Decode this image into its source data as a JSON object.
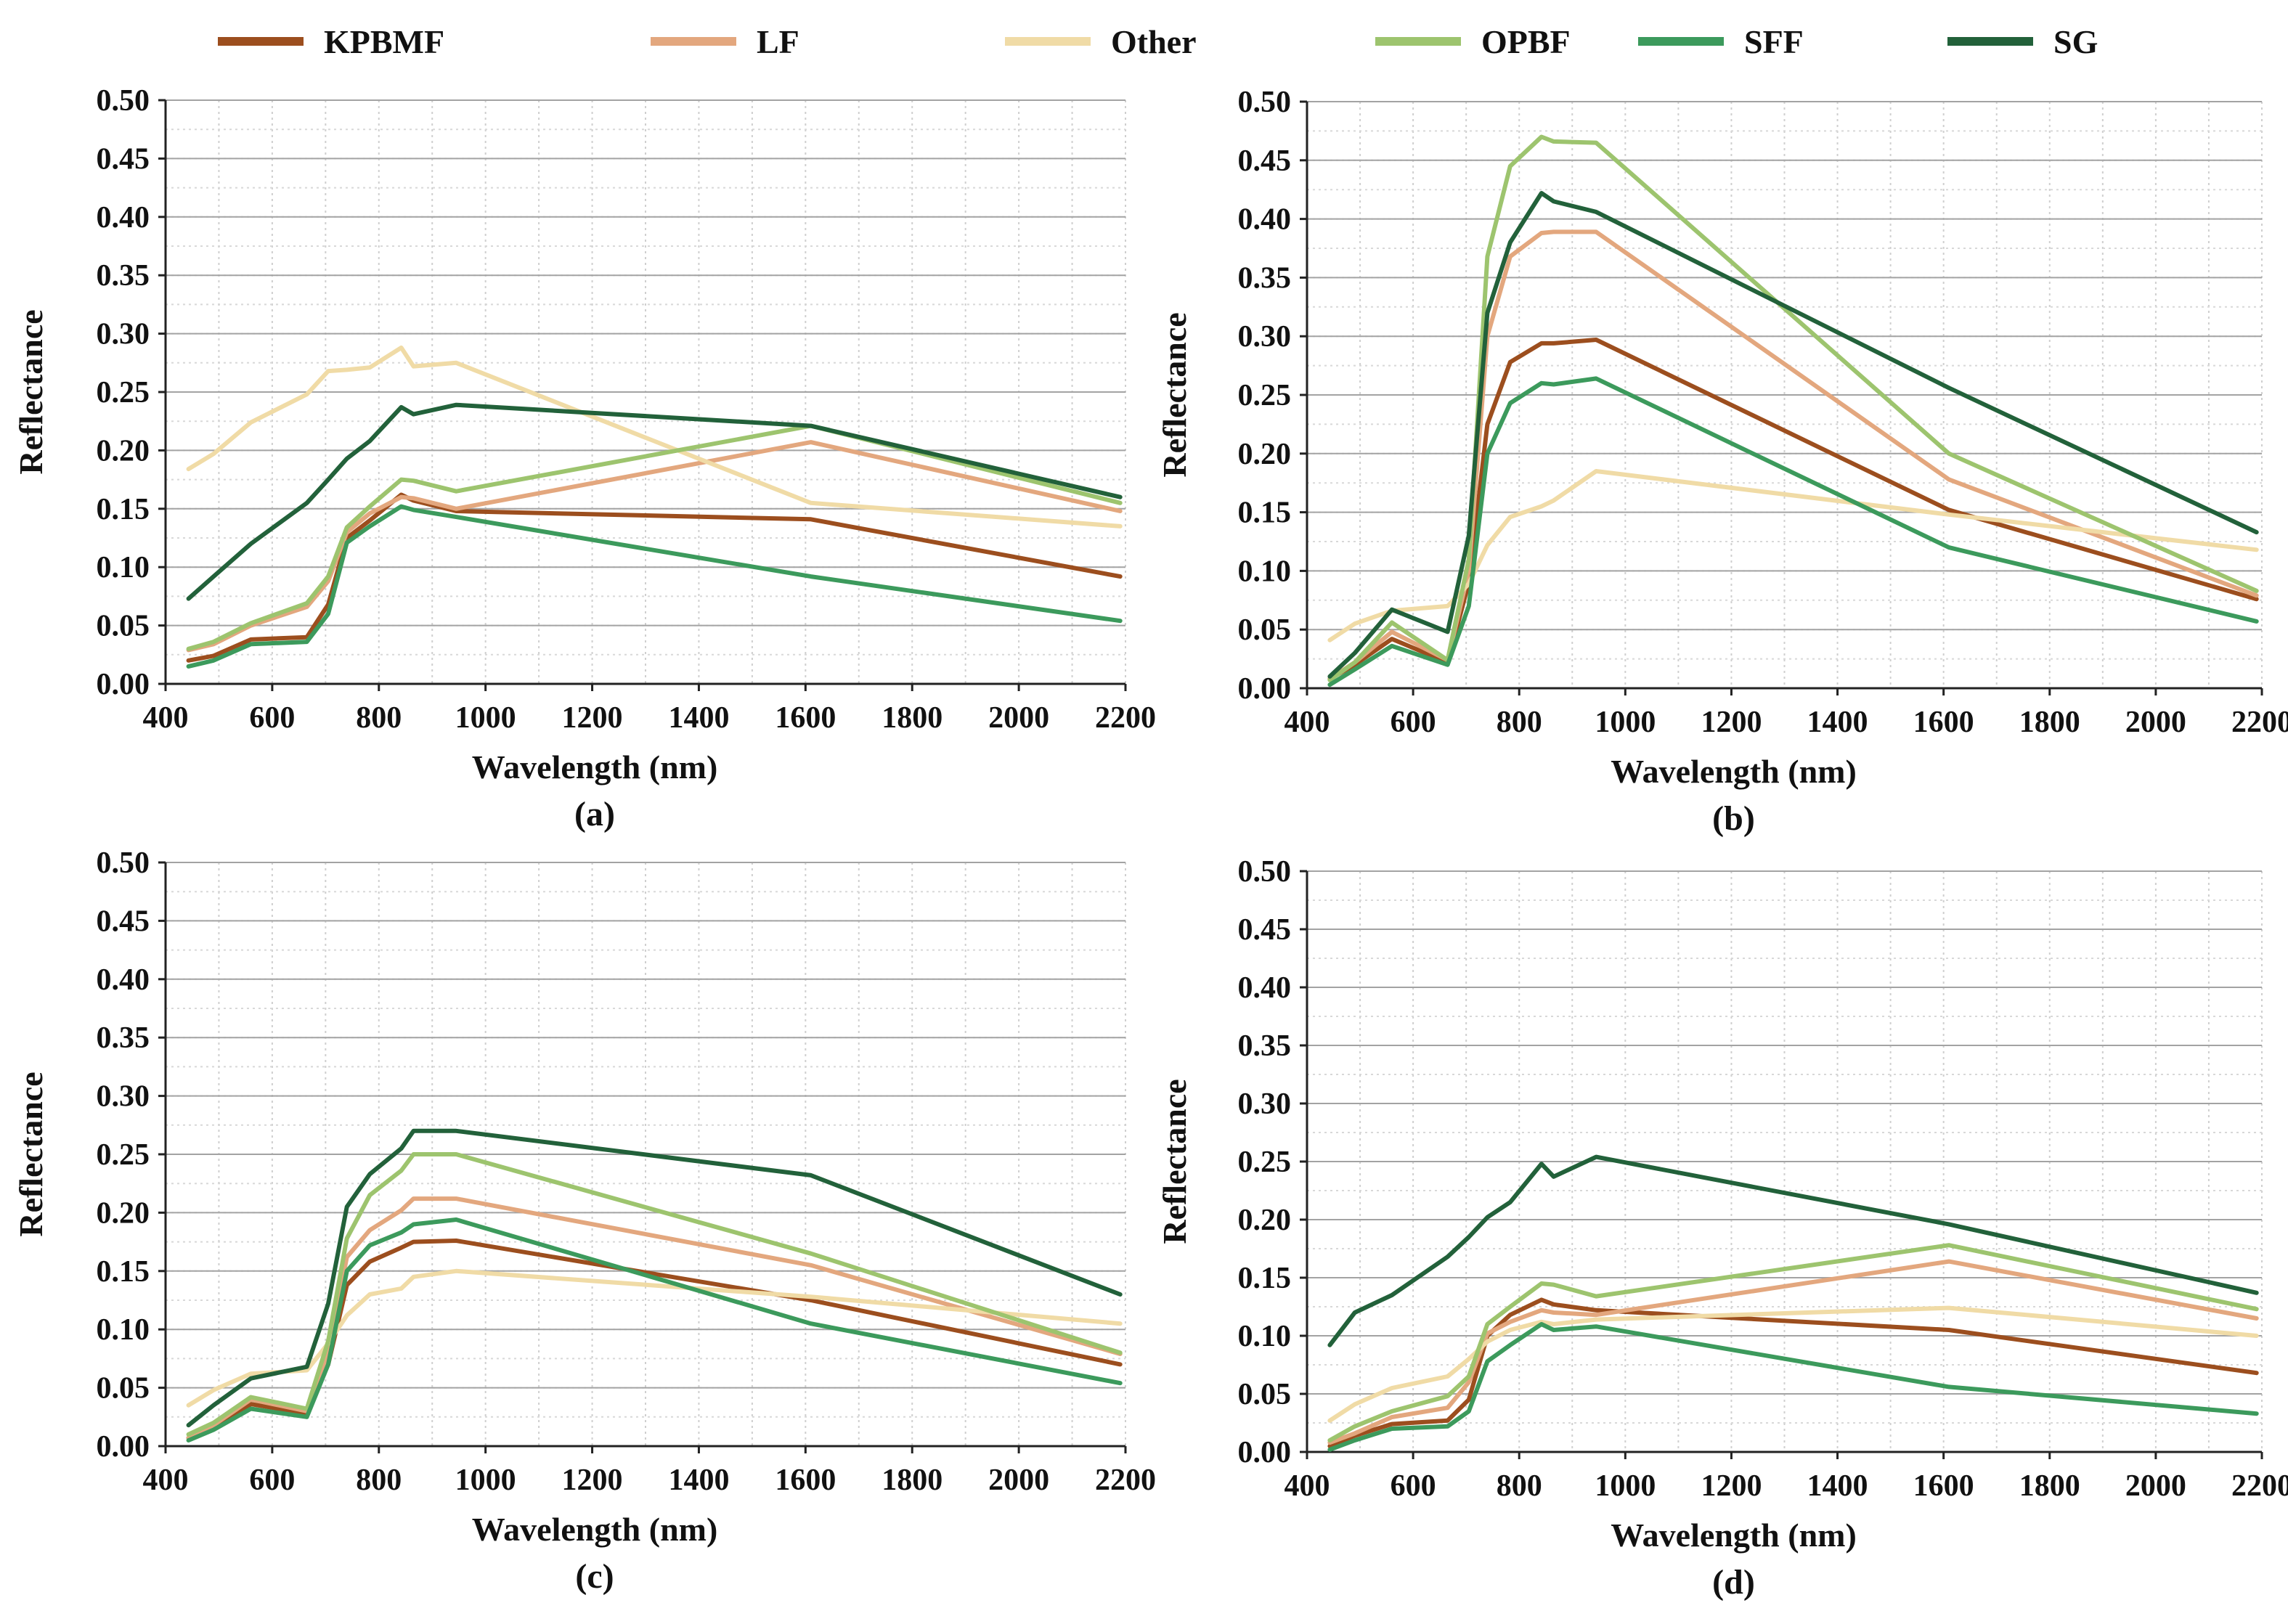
{
  "legend": {
    "items": [
      {
        "label": "KPBMF",
        "color": "#9C4E1E"
      },
      {
        "label": "LF",
        "color": "#E3A77E"
      },
      {
        "label": "Other",
        "color": "#F0DBA6"
      },
      {
        "label": "OPBF",
        "color": "#9DC46E"
      },
      {
        "label": "SFF",
        "color": "#3C9A5C"
      },
      {
        "label": "SG",
        "color": "#22613A"
      }
    ]
  },
  "chart_data": [
    {
      "type": "line",
      "panel_label": "(a)",
      "xlabel": "Wavelength (nm)",
      "ylabel": "Reflectance",
      "xlim": [
        400,
        2200
      ],
      "ylim": [
        0,
        0.5
      ],
      "grid": true,
      "xticks": [
        "400",
        "600",
        "800",
        "1000",
        "1200",
        "1400",
        "1600",
        "1800",
        "2000",
        "2200"
      ],
      "yticks": [
        "0.00",
        "0.05",
        "0.10",
        "0.15",
        "0.20",
        "0.25",
        "0.30",
        "0.35",
        "0.40",
        "0.45",
        "0.50"
      ],
      "x": [
        443,
        490,
        560,
        665,
        705,
        740,
        783,
        842,
        865,
        945,
        1610,
        2190
      ],
      "series": [
        {
          "name": "KPBMF",
          "values": [
            0.02,
            0.024,
            0.038,
            0.04,
            0.068,
            0.125,
            0.14,
            0.162,
            0.157,
            0.148,
            0.141,
            0.092
          ]
        },
        {
          "name": "LF",
          "values": [
            0.029,
            0.034,
            0.05,
            0.066,
            0.088,
            0.13,
            0.146,
            0.16,
            0.159,
            0.15,
            0.207,
            0.148
          ]
        },
        {
          "name": "Other",
          "values": [
            0.184,
            0.197,
            0.224,
            0.248,
            0.268,
            0.269,
            0.271,
            0.288,
            0.272,
            0.275,
            0.155,
            0.135
          ]
        },
        {
          "name": "OPBF",
          "values": [
            0.03,
            0.036,
            0.052,
            0.069,
            0.092,
            0.134,
            0.152,
            0.175,
            0.174,
            0.165,
            0.221,
            0.155
          ]
        },
        {
          "name": "SFF",
          "values": [
            0.015,
            0.02,
            0.034,
            0.036,
            0.06,
            0.121,
            0.135,
            0.152,
            0.149,
            0.143,
            0.092,
            0.054
          ]
        },
        {
          "name": "SG",
          "values": [
            0.073,
            0.092,
            0.12,
            0.155,
            0.175,
            0.193,
            0.208,
            0.237,
            0.231,
            0.239,
            0.221,
            0.16
          ]
        }
      ]
    },
    {
      "type": "line",
      "panel_label": "(b)",
      "xlabel": "Wavelength (nm)",
      "ylabel": "Reflectance",
      "xlim": [
        400,
        2200
      ],
      "ylim": [
        0,
        0.5
      ],
      "grid": true,
      "xticks": [
        "400",
        "600",
        "800",
        "1000",
        "1200",
        "1400",
        "1600",
        "1800",
        "2000",
        "2200"
      ],
      "yticks": [
        "0.00",
        "0.05",
        "0.10",
        "0.15",
        "0.20",
        "0.25",
        "0.30",
        "0.35",
        "0.40",
        "0.45",
        "0.50"
      ],
      "x": [
        443,
        490,
        560,
        665,
        705,
        740,
        783,
        842,
        865,
        945,
        1610,
        2190
      ],
      "series": [
        {
          "name": "KPBMF",
          "values": [
            0.008,
            0.02,
            0.042,
            0.022,
            0.09,
            0.225,
            0.278,
            0.294,
            0.294,
            0.297,
            0.152,
            0.076
          ]
        },
        {
          "name": "LF",
          "values": [
            0.008,
            0.022,
            0.048,
            0.024,
            0.1,
            0.3,
            0.368,
            0.388,
            0.389,
            0.389,
            0.178,
            0.079
          ]
        },
        {
          "name": "Other",
          "values": [
            0.041,
            0.055,
            0.066,
            0.07,
            0.089,
            0.122,
            0.146,
            0.155,
            0.16,
            0.185,
            0.148,
            0.118
          ]
        },
        {
          "name": "OPBF",
          "values": [
            0.007,
            0.022,
            0.056,
            0.024,
            0.11,
            0.368,
            0.445,
            0.47,
            0.466,
            0.465,
            0.2,
            0.083
          ]
        },
        {
          "name": "SFF",
          "values": [
            0.003,
            0.016,
            0.036,
            0.02,
            0.07,
            0.2,
            0.243,
            0.26,
            0.259,
            0.264,
            0.12,
            0.057
          ]
        },
        {
          "name": "SG",
          "values": [
            0.01,
            0.03,
            0.067,
            0.048,
            0.13,
            0.32,
            0.38,
            0.422,
            0.415,
            0.406,
            0.256,
            0.133
          ]
        }
      ]
    },
    {
      "type": "line",
      "panel_label": "(c)",
      "xlabel": "Wavelength (nm)",
      "ylabel": "Reflectance",
      "xlim": [
        400,
        2200
      ],
      "ylim": [
        0,
        0.5
      ],
      "grid": true,
      "xticks": [
        "400",
        "600",
        "800",
        "1000",
        "1200",
        "1400",
        "1600",
        "1800",
        "2000",
        "2200"
      ],
      "yticks": [
        "0.00",
        "0.05",
        "0.10",
        "0.15",
        "0.20",
        "0.25",
        "0.30",
        "0.35",
        "0.40",
        "0.45",
        "0.50"
      ],
      "x": [
        443,
        490,
        560,
        665,
        705,
        740,
        783,
        842,
        865,
        945,
        1610,
        2190
      ],
      "series": [
        {
          "name": "KPBMF",
          "values": [
            0.007,
            0.016,
            0.036,
            0.028,
            0.07,
            0.138,
            0.158,
            0.17,
            0.175,
            0.176,
            0.125,
            0.07
          ]
        },
        {
          "name": "LF",
          "values": [
            0.007,
            0.018,
            0.04,
            0.03,
            0.08,
            0.162,
            0.185,
            0.202,
            0.212,
            0.212,
            0.155,
            0.079
          ]
        },
        {
          "name": "Other",
          "values": [
            0.035,
            0.048,
            0.062,
            0.065,
            0.088,
            0.112,
            0.13,
            0.135,
            0.145,
            0.15,
            0.128,
            0.105
          ]
        },
        {
          "name": "OPBF",
          "values": [
            0.01,
            0.02,
            0.042,
            0.032,
            0.09,
            0.178,
            0.215,
            0.236,
            0.25,
            0.25,
            0.165,
            0.08
          ]
        },
        {
          "name": "SFF",
          "values": [
            0.005,
            0.014,
            0.032,
            0.025,
            0.07,
            0.15,
            0.172,
            0.183,
            0.19,
            0.194,
            0.105,
            0.054
          ]
        },
        {
          "name": "SG",
          "values": [
            0.018,
            0.035,
            0.058,
            0.068,
            0.122,
            0.205,
            0.233,
            0.255,
            0.27,
            0.27,
            0.232,
            0.13
          ]
        }
      ]
    },
    {
      "type": "line",
      "panel_label": "(d)",
      "xlabel": "Wavelength (nm)",
      "ylabel": "Reflectance",
      "xlim": [
        400,
        2200
      ],
      "ylim": [
        0,
        0.5
      ],
      "grid": true,
      "xticks": [
        "400",
        "600",
        "800",
        "1000",
        "1200",
        "1400",
        "1600",
        "1800",
        "2000",
        "2200"
      ],
      "yticks": [
        "0.00",
        "0.05",
        "0.10",
        "0.15",
        "0.20",
        "0.25",
        "0.30",
        "0.35",
        "0.40",
        "0.45",
        "0.50"
      ],
      "x": [
        443,
        490,
        560,
        665,
        705,
        740,
        783,
        842,
        865,
        945,
        1610,
        2190
      ],
      "series": [
        {
          "name": "KPBMF",
          "values": [
            0.005,
            0.014,
            0.024,
            0.027,
            0.045,
            0.1,
            0.118,
            0.131,
            0.127,
            0.122,
            0.105,
            0.068
          ]
        },
        {
          "name": "LF",
          "values": [
            0.008,
            0.016,
            0.03,
            0.038,
            0.06,
            0.102,
            0.112,
            0.122,
            0.12,
            0.118,
            0.164,
            0.115
          ]
        },
        {
          "name": "Other",
          "values": [
            0.027,
            0.041,
            0.055,
            0.065,
            0.08,
            0.095,
            0.105,
            0.112,
            0.11,
            0.114,
            0.124,
            0.1
          ]
        },
        {
          "name": "OPBF",
          "values": [
            0.01,
            0.022,
            0.035,
            0.048,
            0.065,
            0.11,
            0.125,
            0.145,
            0.144,
            0.134,
            0.178,
            0.123
          ]
        },
        {
          "name": "SFF",
          "values": [
            0.002,
            0.01,
            0.02,
            0.022,
            0.035,
            0.078,
            0.092,
            0.11,
            0.105,
            0.108,
            0.056,
            0.033
          ]
        },
        {
          "name": "SG",
          "values": [
            0.092,
            0.12,
            0.135,
            0.168,
            0.185,
            0.202,
            0.215,
            0.248,
            0.237,
            0.254,
            0.196,
            0.137
          ]
        }
      ]
    }
  ]
}
